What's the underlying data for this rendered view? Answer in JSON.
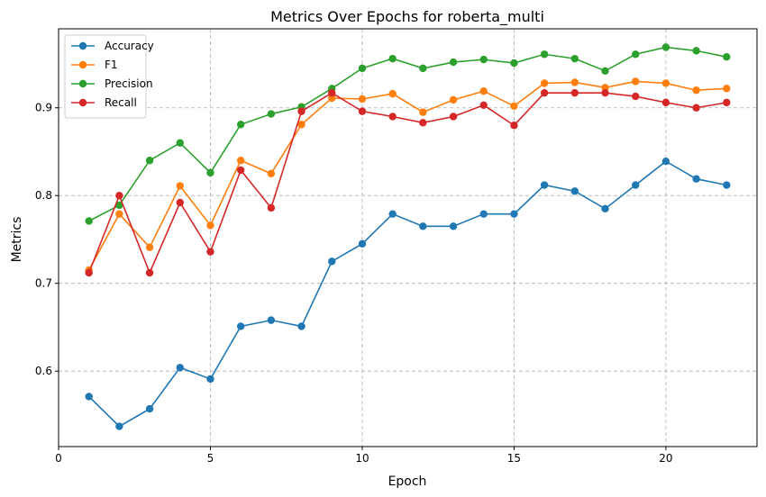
{
  "chart_data": {
    "type": "line",
    "title": "Metrics Over Epochs for roberta_multi",
    "xlabel": "Epoch",
    "ylabel": "Metrics",
    "xlim": [
      0,
      23
    ],
    "ylim": [
      0.514,
      0.99
    ],
    "xticks": [
      0,
      5,
      10,
      15,
      20
    ],
    "yticks": [
      0.6,
      0.7,
      0.8,
      0.9
    ],
    "ytick_labels": [
      "0.6",
      "0.7",
      "0.8",
      "0.9"
    ],
    "grid": true,
    "legend_position": "upper-left",
    "x": [
      1,
      2,
      3,
      4,
      5,
      6,
      7,
      8,
      9,
      10,
      11,
      12,
      13,
      14,
      15,
      16,
      17,
      18,
      19,
      20,
      21,
      22
    ],
    "series": [
      {
        "name": "Accuracy",
        "color": "#1f77b4",
        "values": [
          0.571,
          0.537,
          0.557,
          0.604,
          0.591,
          0.651,
          0.658,
          0.651,
          0.725,
          0.745,
          0.779,
          0.765,
          0.765,
          0.779,
          0.779,
          0.812,
          0.805,
          0.785,
          0.812,
          0.839,
          0.819,
          0.812
        ]
      },
      {
        "name": "F1",
        "color": "#ff7f0e",
        "values": [
          0.715,
          0.779,
          0.741,
          0.811,
          0.766,
          0.84,
          0.825,
          0.881,
          0.911,
          0.91,
          0.916,
          0.895,
          0.909,
          0.919,
          0.902,
          0.928,
          0.929,
          0.923,
          0.93,
          0.928,
          0.92,
          0.922
        ]
      },
      {
        "name": "Precision",
        "color": "#2ca02c",
        "values": [
          0.771,
          0.789,
          0.84,
          0.86,
          0.826,
          0.881,
          0.893,
          0.901,
          0.922,
          0.945,
          0.956,
          0.945,
          0.952,
          0.955,
          0.951,
          0.961,
          0.956,
          0.942,
          0.961,
          0.969,
          0.965,
          0.958
        ]
      },
      {
        "name": "Recall",
        "color": "#d62728",
        "values": [
          0.712,
          0.8,
          0.712,
          0.792,
          0.736,
          0.829,
          0.786,
          0.896,
          0.917,
          0.896,
          0.89,
          0.883,
          0.89,
          0.903,
          0.88,
          0.917,
          0.917,
          0.917,
          0.913,
          0.906,
          0.9,
          0.906
        ]
      }
    ]
  }
}
